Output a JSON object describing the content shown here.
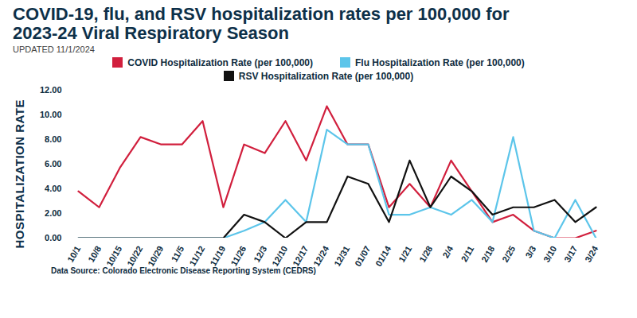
{
  "chart_data": {
    "type": "line",
    "title": "COVID-19, flu, and RSV hospitalization rates per 100,000 for 2023-24 Viral Respiratory Season",
    "subtitle": "UPDATED 11/1/2024",
    "y_label": "HOSPITALIZATION RATE",
    "caption": "Data Source: Colorado Electronic Disease Reporting System (CEDRS)",
    "categories": [
      "10/1",
      "10/8",
      "10/15",
      "10/22",
      "10/29",
      "11/5",
      "11/12",
      "11/19",
      "11/26",
      "12/3",
      "12/10",
      "12/17",
      "12/24",
      "12/31",
      "01/07",
      "01/14",
      "1/21",
      "1/28",
      "2/4",
      "2/11",
      "2/18",
      "2/25",
      "3/3",
      "3/10",
      "3/17",
      "3/24"
    ],
    "series": [
      {
        "name": "COVID Hospitalization Rate (per 100,000)",
        "color": "#d11f3d",
        "values": [
          3.8,
          2.5,
          5.7,
          8.2,
          7.6,
          7.6,
          9.5,
          2.5,
          7.6,
          6.9,
          9.5,
          6.3,
          10.7,
          7.6,
          7.6,
          2.5,
          4.4,
          2.5,
          6.3,
          3.8,
          1.3,
          1.9,
          0.6,
          0.0,
          0.0,
          0.6
        ]
      },
      {
        "name": "Flu Hospitalization Rate (per 100,000)",
        "color": "#5cc5ea",
        "values": [
          0.0,
          0.0,
          0.0,
          0.0,
          0.0,
          0.0,
          0.0,
          0.0,
          0.6,
          1.3,
          3.1,
          1.3,
          8.8,
          7.6,
          7.6,
          1.9,
          1.9,
          2.5,
          1.9,
          3.1,
          1.3,
          8.2,
          0.6,
          0.0,
          3.1,
          0.0
        ]
      },
      {
        "name": "RSV Hospitalization Rate (per 100,000)",
        "color": "#111111",
        "values": [
          0.0,
          0.0,
          0.0,
          0.0,
          0.0,
          0.0,
          0.0,
          0.0,
          1.9,
          1.3,
          0.0,
          1.3,
          1.3,
          5.0,
          4.4,
          1.3,
          6.3,
          2.5,
          5.0,
          3.8,
          1.9,
          2.5,
          2.5,
          3.1,
          1.3,
          2.5
        ]
      }
    ],
    "ylim": [
      0,
      12
    ],
    "yticks": [
      {
        "value": 0,
        "label": "0.00"
      },
      {
        "value": 2,
        "label": "2.00"
      },
      {
        "value": 4,
        "label": "4.00"
      },
      {
        "value": 6,
        "label": "6.00"
      },
      {
        "value": 8,
        "label": "8.00"
      },
      {
        "value": 10,
        "label": "10.00"
      },
      {
        "value": 12,
        "label": "12.00"
      }
    ],
    "grid": false
  }
}
